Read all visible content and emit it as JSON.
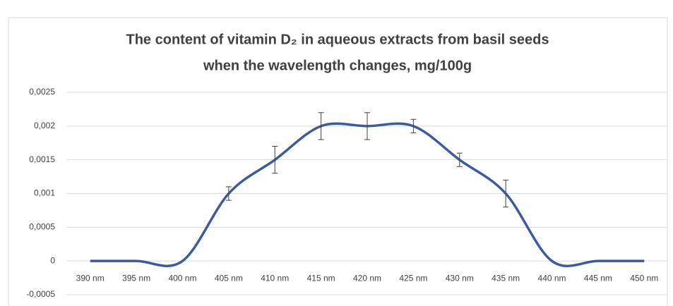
{
  "chart_data": {
    "type": "line",
    "title": [
      "The content of vitamin D₂ in aqueous extracts from basil seeds",
      "when the wavelength changes, mg/100g"
    ],
    "categories": [
      "390 nm",
      "395 nm",
      "400 nm",
      "405 nm",
      "410 nm",
      "415 nm",
      "420 nm",
      "425 nm",
      "430 nm",
      "435 nm",
      "440 nm",
      "445 nm",
      "450 nm"
    ],
    "series": [
      {
        "color": "#3b5b9e",
        "values": [
          0,
          0,
          0,
          0.001,
          0.0015,
          0.002,
          0.002,
          0.002,
          0.0015,
          0.001,
          0,
          0,
          0
        ],
        "errors": [
          null,
          null,
          null,
          0.0001,
          0.0002,
          0.0002,
          0.0002,
          0.0001,
          0.0001,
          0.0002,
          null,
          null,
          null
        ]
      }
    ],
    "ylim": [
      -0.0005,
      0.0025
    ],
    "yticks": [
      {
        "value": -0.0005,
        "label": "-0,0005"
      },
      0,
      {
        "value": 0.0005,
        "label": "0,0005"
      },
      {
        "value": 0.001,
        "label": "0,001"
      },
      {
        "value": 0.0015,
        "label": "0,0015"
      },
      {
        "value": 0.002,
        "label": "0,002"
      },
      {
        "value": 0.0025,
        "label": "0,0025"
      }
    ],
    "grid": true,
    "smooth": true
  }
}
